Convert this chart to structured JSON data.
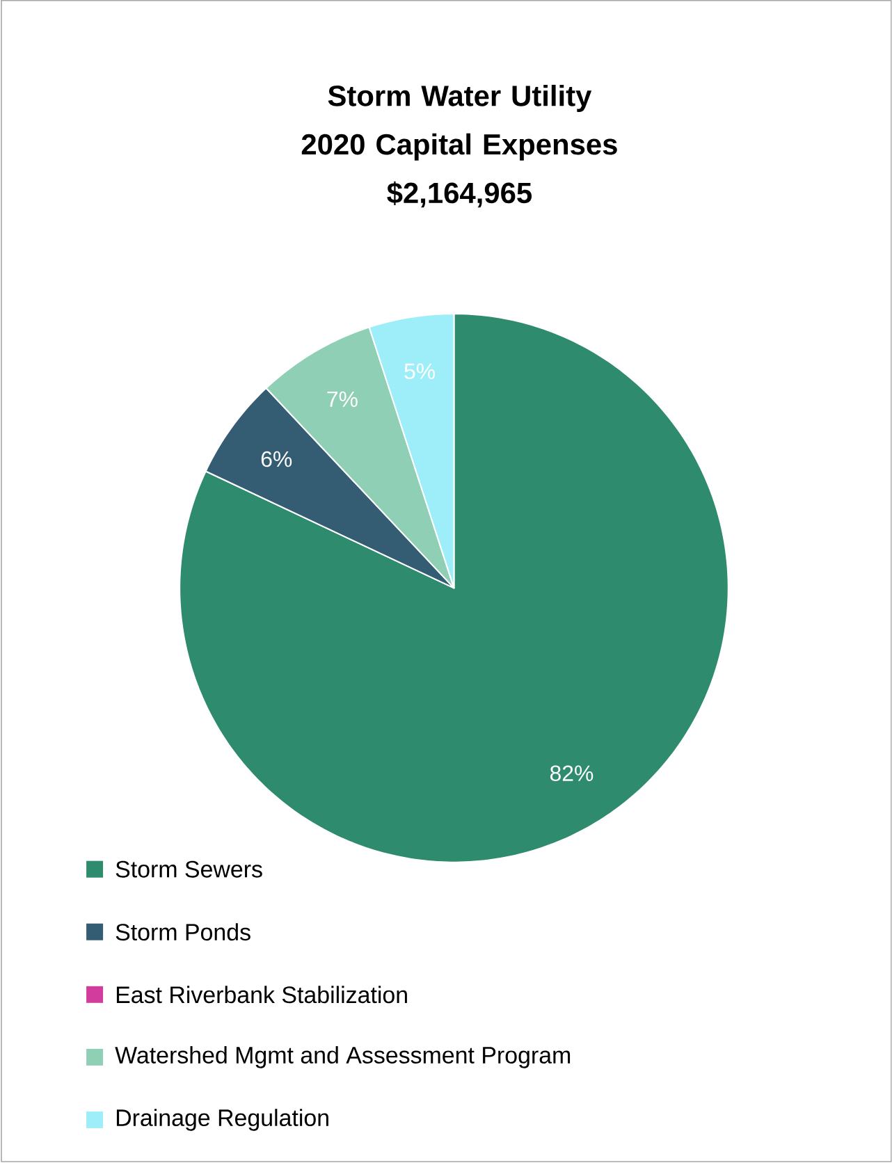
{
  "chart_data": {
    "type": "pie",
    "title": "Storm Water Utility\n2020 Capital Expenses\n$2,164,965",
    "categories": [
      "Storm Sewers",
      "Storm Ponds",
      "East Riverbank Stabilization",
      "Watershed Mgmt and Assessment Program",
      "Drainage Regulation"
    ],
    "values": [
      82,
      6,
      0,
      7,
      5
    ],
    "colors": [
      "#2e8b6e",
      "#345c72",
      "#d23c9c",
      "#8fcfb5",
      "#9deef8"
    ],
    "value_labels": [
      "82%",
      "6%",
      null,
      "7%",
      "5%"
    ],
    "legend": "bottom"
  }
}
